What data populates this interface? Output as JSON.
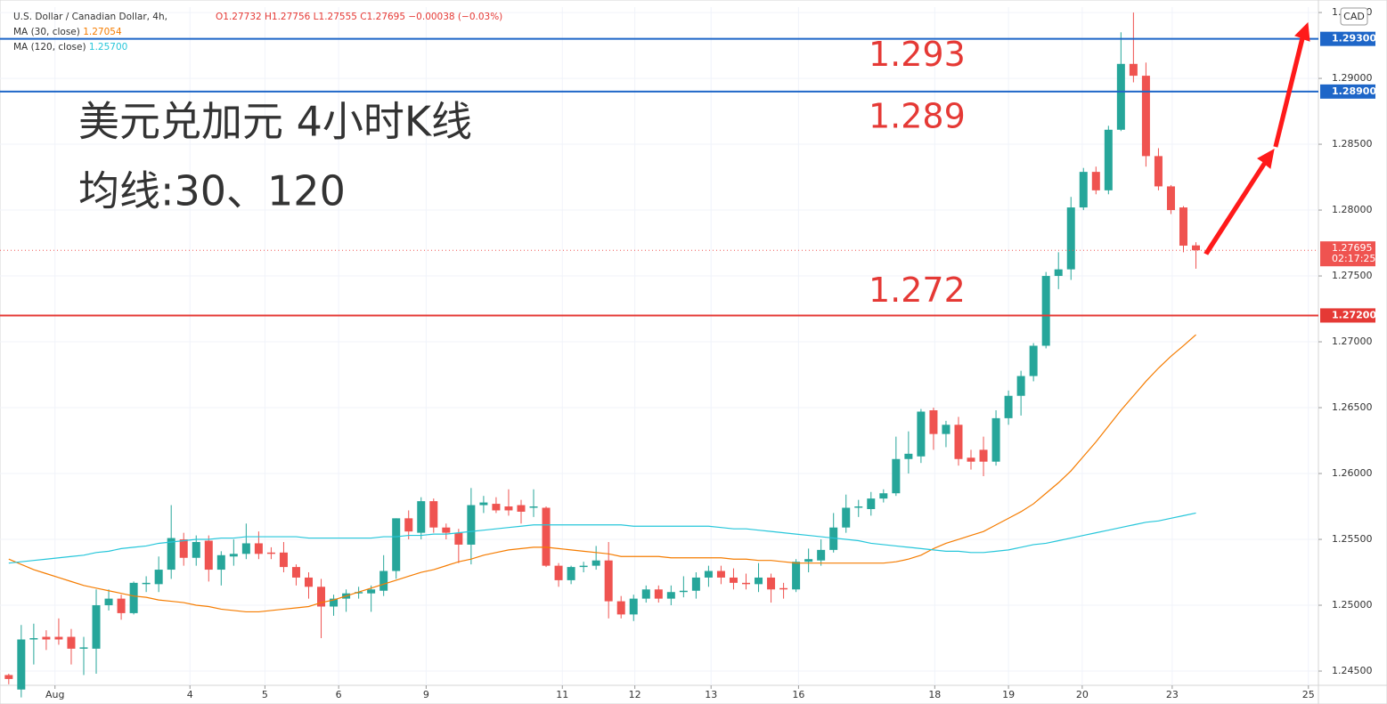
{
  "header": {
    "symbol": "U.S. Dollar / Canadian Dollar, 4h,",
    "ohlc_text": "O1.27732 H1.27756 L1.27555 C1.27695 −0.00038 (−0.03%)",
    "currency": "CAD",
    "countdown": "02:17:25"
  },
  "chart_data": {
    "type": "candlestick",
    "title": "美元兑加元 4小时K线",
    "subtitle": "均线:30、120",
    "up_color": "#26a69a",
    "down_color": "#ef5350",
    "ohlc": [
      [
        1.2447,
        1.2448,
        1.244,
        1.2444
      ],
      [
        1.2436,
        1.2485,
        1.243,
        1.2474
      ],
      [
        1.2474,
        1.2486,
        1.2455,
        1.2475
      ],
      [
        1.2476,
        1.2481,
        1.2466,
        1.2474
      ],
      [
        1.2476,
        1.249,
        1.247,
        1.2474
      ],
      [
        1.2476,
        1.2482,
        1.2455,
        1.2467
      ],
      [
        1.2467,
        1.2476,
        1.2447,
        1.2468
      ],
      [
        1.2467,
        1.2512,
        1.2448,
        1.25
      ],
      [
        1.25,
        1.2512,
        1.2496,
        1.2505
      ],
      [
        1.2505,
        1.2508,
        1.2489,
        1.2494
      ],
      [
        1.2494,
        1.2518,
        1.2493,
        1.2517
      ],
      [
        1.2516,
        1.2522,
        1.251,
        1.2517
      ],
      [
        1.2516,
        1.2537,
        1.251,
        1.2527
      ],
      [
        1.2527,
        1.2576,
        1.252,
        1.2551
      ],
      [
        1.255,
        1.2555,
        1.253,
        1.2536
      ],
      [
        1.2536,
        1.2553,
        1.253,
        1.2548
      ],
      [
        1.2549,
        1.2553,
        1.2518,
        1.2527
      ],
      [
        1.2527,
        1.2541,
        1.2515,
        1.2538
      ],
      [
        1.2537,
        1.255,
        1.253,
        1.2539
      ],
      [
        1.2539,
        1.2562,
        1.2535,
        1.2547
      ],
      [
        1.2547,
        1.2556,
        1.2535,
        1.2539
      ],
      [
        1.254,
        1.2544,
        1.2535,
        1.2539
      ],
      [
        1.254,
        1.2548,
        1.2525,
        1.2529
      ],
      [
        1.2529,
        1.2531,
        1.2515,
        1.2521
      ],
      [
        1.2521,
        1.2525,
        1.2505,
        1.2514
      ],
      [
        1.2514,
        1.252,
        1.2475,
        1.2499
      ],
      [
        1.2499,
        1.2508,
        1.2492,
        1.2505
      ],
      [
        1.2505,
        1.2512,
        1.2495,
        1.2509
      ],
      [
        1.2509,
        1.2514,
        1.2505,
        1.251
      ],
      [
        1.2509,
        1.2515,
        1.2495,
        1.2512
      ],
      [
        1.2511,
        1.2538,
        1.2507,
        1.2526
      ],
      [
        1.2526,
        1.2566,
        1.252,
        1.2566
      ],
      [
        1.2566,
        1.2572,
        1.255,
        1.2556
      ],
      [
        1.2555,
        1.2582,
        1.255,
        1.2579
      ],
      [
        1.2579,
        1.2581,
        1.2555,
        1.2559
      ],
      [
        1.2559,
        1.2562,
        1.255,
        1.2555
      ],
      [
        1.2555,
        1.2558,
        1.2532,
        1.2546
      ],
      [
        1.2546,
        1.2589,
        1.2531,
        1.2576
      ],
      [
        1.2576,
        1.2583,
        1.257,
        1.2578
      ],
      [
        1.2577,
        1.2582,
        1.257,
        1.2572
      ],
      [
        1.2575,
        1.2588,
        1.2568,
        1.2572
      ],
      [
        1.2576,
        1.258,
        1.2562,
        1.2571
      ],
      [
        1.2574,
        1.2588,
        1.2567,
        1.2575
      ],
      [
        1.2574,
        1.2575,
        1.2529,
        1.253
      ],
      [
        1.253,
        1.2532,
        1.2514,
        1.2519
      ],
      [
        1.2519,
        1.253,
        1.2516,
        1.2529
      ],
      [
        1.2529,
        1.2533,
        1.2525,
        1.253
      ],
      [
        1.253,
        1.2545,
        1.2527,
        1.2534
      ],
      [
        1.2534,
        1.2548,
        1.249,
        1.2503
      ],
      [
        1.2503,
        1.2507,
        1.249,
        1.2493
      ],
      [
        1.2493,
        1.2508,
        1.2488,
        1.2505
      ],
      [
        1.2505,
        1.2515,
        1.2502,
        1.2512
      ],
      [
        1.2512,
        1.2515,
        1.2502,
        1.2505
      ],
      [
        1.2505,
        1.2515,
        1.25,
        1.251
      ],
      [
        1.251,
        1.2522,
        1.2506,
        1.2511
      ],
      [
        1.2511,
        1.2525,
        1.2505,
        1.2521
      ],
      [
        1.2521,
        1.253,
        1.2514,
        1.2526
      ],
      [
        1.2526,
        1.253,
        1.2516,
        1.2521
      ],
      [
        1.2521,
        1.2528,
        1.2512,
        1.2517
      ],
      [
        1.2517,
        1.2524,
        1.2512,
        1.2516
      ],
      [
        1.2516,
        1.2532,
        1.251,
        1.2521
      ],
      [
        1.2521,
        1.2524,
        1.2502,
        1.2512
      ],
      [
        1.2513,
        1.2517,
        1.2505,
        1.2512
      ],
      [
        1.2512,
        1.2535,
        1.251,
        1.2533
      ],
      [
        1.2533,
        1.2543,
        1.2525,
        1.2535
      ],
      [
        1.2534,
        1.255,
        1.253,
        1.2542
      ],
      [
        1.2542,
        1.257,
        1.254,
        1.2559
      ],
      [
        1.2559,
        1.2584,
        1.2555,
        1.2574
      ],
      [
        1.2574,
        1.258,
        1.2567,
        1.2575
      ],
      [
        1.2573,
        1.2586,
        1.2568,
        1.2581
      ],
      [
        1.2581,
        1.2588,
        1.2578,
        1.2585
      ],
      [
        1.2585,
        1.2628,
        1.2583,
        1.2611
      ],
      [
        1.2611,
        1.2632,
        1.26,
        1.2615
      ],
      [
        1.2613,
        1.2649,
        1.2608,
        1.2647
      ],
      [
        1.2648,
        1.265,
        1.2618,
        1.263
      ],
      [
        1.263,
        1.264,
        1.262,
        1.2637
      ],
      [
        1.2637,
        1.2643,
        1.2606,
        1.2611
      ],
      [
        1.2612,
        1.2618,
        1.2603,
        1.2609
      ],
      [
        1.2618,
        1.2628,
        1.2598,
        1.2609
      ],
      [
        1.2609,
        1.2648,
        1.2606,
        1.2642
      ],
      [
        1.2642,
        1.2663,
        1.2637,
        1.2659
      ],
      [
        1.2659,
        1.2678,
        1.2644,
        1.2674
      ],
      [
        1.2674,
        1.2699,
        1.267,
        1.2697
      ],
      [
        1.2697,
        1.2753,
        1.2695,
        1.275
      ],
      [
        1.275,
        1.2768,
        1.274,
        1.2755
      ],
      [
        1.2755,
        1.281,
        1.2747,
        1.2802
      ],
      [
        1.2802,
        1.2832,
        1.28,
        1.2829
      ],
      [
        1.2829,
        1.2833,
        1.2812,
        1.2815
      ],
      [
        1.2815,
        1.2864,
        1.2812,
        1.2861
      ],
      [
        1.2861,
        1.2935,
        1.286,
        1.2911
      ],
      [
        1.2911,
        1.295,
        1.2897,
        1.2902
      ],
      [
        1.2902,
        1.2912,
        1.2833,
        1.2841
      ],
      [
        1.2841,
        1.2847,
        1.2815,
        1.2818
      ],
      [
        1.2818,
        1.2819,
        1.2797,
        1.28
      ],
      [
        1.2802,
        1.2803,
        1.2768,
        1.2773
      ],
      [
        1.27732,
        1.27756,
        1.27555,
        1.27695
      ]
    ],
    "series": [
      {
        "name": "MA (30, close)",
        "color": "#f57c00",
        "value_label": "1.27054",
        "values": [
          1.2535,
          1.2531,
          1.2527,
          1.2524,
          1.2521,
          1.2518,
          1.2515,
          1.2513,
          1.2511,
          1.2509,
          1.2507,
          1.2506,
          1.2504,
          1.2503,
          1.2502,
          1.25,
          1.2499,
          1.2497,
          1.2496,
          1.2495,
          1.2495,
          1.2496,
          1.2497,
          1.2498,
          1.2499,
          1.2502,
          1.2504,
          1.2507,
          1.251,
          1.2513,
          1.2516,
          1.2519,
          1.2522,
          1.2525,
          1.2527,
          1.253,
          1.2533,
          1.2535,
          1.2538,
          1.254,
          1.2542,
          1.2543,
          1.2544,
          1.2544,
          1.2543,
          1.2542,
          1.2541,
          1.254,
          1.2539,
          1.2537,
          1.2537,
          1.2537,
          1.2537,
          1.2536,
          1.2536,
          1.2536,
          1.2536,
          1.2536,
          1.2535,
          1.2535,
          1.2534,
          1.2534,
          1.2533,
          1.2532,
          1.2532,
          1.2532,
          1.2532,
          1.2532,
          1.2532,
          1.2532,
          1.2532,
          1.2533,
          1.2535,
          1.2538,
          1.2543,
          1.2547,
          1.255,
          1.2553,
          1.2556,
          1.2561,
          1.2566,
          1.2571,
          1.2577,
          1.2585,
          1.2593,
          1.2602,
          1.2613,
          1.2624,
          1.2636,
          1.2648,
          1.2659,
          1.267,
          1.268,
          1.2689,
          1.2697,
          1.27054
        ]
      },
      {
        "name": "MA (120, close)",
        "color": "#26c6da",
        "value_label": "1.25700",
        "values": [
          1.2532,
          1.2533,
          1.2534,
          1.2535,
          1.2536,
          1.2537,
          1.2538,
          1.254,
          1.2541,
          1.2543,
          1.2544,
          1.2545,
          1.2547,
          1.2548,
          1.2549,
          1.255,
          1.255,
          1.2551,
          1.2551,
          1.2552,
          1.2552,
          1.2552,
          1.2552,
          1.2552,
          1.2551,
          1.2551,
          1.2551,
          1.2551,
          1.2551,
          1.2551,
          1.2552,
          1.2552,
          1.2553,
          1.2553,
          1.2554,
          1.2554,
          1.2555,
          1.2556,
          1.2557,
          1.2558,
          1.2559,
          1.256,
          1.2561,
          1.2561,
          1.2561,
          1.2561,
          1.2561,
          1.2561,
          1.2561,
          1.2561,
          1.256,
          1.256,
          1.256,
          1.256,
          1.256,
          1.256,
          1.256,
          1.2559,
          1.2558,
          1.2558,
          1.2557,
          1.2556,
          1.2555,
          1.2554,
          1.2553,
          1.2552,
          1.2551,
          1.255,
          1.2549,
          1.2547,
          1.2546,
          1.2545,
          1.2544,
          1.2543,
          1.2542,
          1.2541,
          1.2541,
          1.254,
          1.254,
          1.2541,
          1.2542,
          1.2544,
          1.2546,
          1.2547,
          1.2549,
          1.2551,
          1.2553,
          1.2555,
          1.2557,
          1.2559,
          1.2561,
          1.2563,
          1.2564,
          1.2566,
          1.2568,
          1.257
        ]
      }
    ],
    "hlines": [
      {
        "value": 1.293,
        "label": "1.29300",
        "annotation": "1.293",
        "color": "#1e66c8",
        "label_color": "#1e66c8"
      },
      {
        "value": 1.289,
        "label": "1.28900",
        "annotation": "1.289",
        "color": "#1e66c8",
        "label_color": "#1e66c8"
      },
      {
        "value": 1.272,
        "label": "1.27200",
        "annotation": "1.272",
        "color": "#e53935",
        "label_color": "#e53935"
      }
    ],
    "last_price": {
      "value": 1.27695,
      "label": "1.27695"
    },
    "ylim": [
      1.24392,
      1.29541
    ],
    "yticks": [
      {
        "value": 1.245,
        "label": "1.24500"
      },
      {
        "value": 1.25,
        "label": "1.25000"
      },
      {
        "value": 1.255,
        "label": "1.25500"
      },
      {
        "value": 1.26,
        "label": "1.26000"
      },
      {
        "value": 1.265,
        "label": "1.26500"
      },
      {
        "value": 1.27,
        "label": "1.27000"
      },
      {
        "value": 1.275,
        "label": "1.27500"
      },
      {
        "value": 1.28,
        "label": "1.28000"
      },
      {
        "value": 1.285,
        "label": "1.28500"
      },
      {
        "value": 1.29,
        "label": "1.29000"
      },
      {
        "value": 1.295,
        "label": "1.29500"
      }
    ],
    "xlim": [
      -0.7,
      104.8
    ],
    "xticks": [
      {
        "value": 3.7,
        "label": "Aug"
      },
      {
        "value": 14.5,
        "label": "4"
      },
      {
        "value": 20.5,
        "label": "5"
      },
      {
        "value": 26.4,
        "label": "6"
      },
      {
        "value": 33.4,
        "label": "9"
      },
      {
        "value": 44.3,
        "label": "11"
      },
      {
        "value": 50.1,
        "label": "12"
      },
      {
        "value": 56.2,
        "label": "13"
      },
      {
        "value": 63.2,
        "label": "16"
      },
      {
        "value": 74.1,
        "label": "18"
      },
      {
        "value": 80.0,
        "label": "19"
      },
      {
        "value": 85.9,
        "label": "20"
      },
      {
        "value": 93.1,
        "label": "23"
      },
      {
        "value": 104.0,
        "label": "25"
      }
    ],
    "grid": true
  }
}
